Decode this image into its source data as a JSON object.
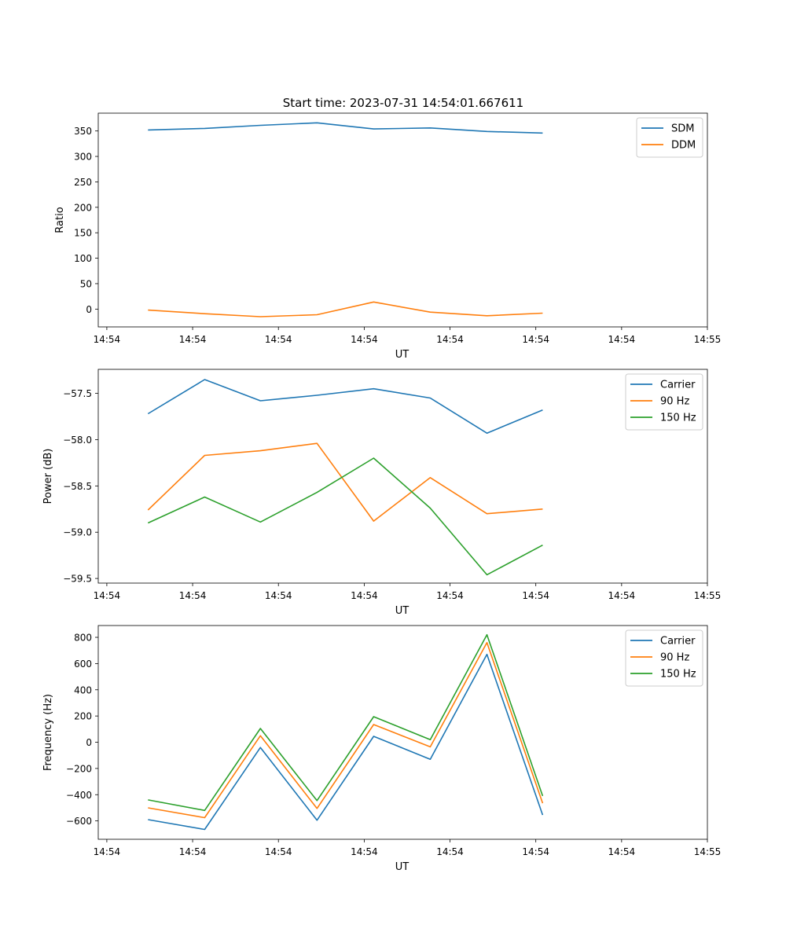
{
  "title": "Start time: 2023-07-31 14:54:01.667611",
  "chart_data": [
    {
      "type": "line",
      "xlabel": "UT",
      "ylabel": "Ratio",
      "x_ticks": [
        "14:54",
        "14:54",
        "14:54",
        "14:54",
        "14:54",
        "14:54",
        "14:54",
        "14:55"
      ],
      "x_tick_pos": [
        0,
        1,
        2,
        3,
        4,
        5,
        6,
        7
      ],
      "x_range": [
        -0.1,
        7.0
      ],
      "ylim": [
        -35,
        385
      ],
      "y_ticks": [
        0,
        50,
        100,
        150,
        200,
        250,
        300,
        350
      ],
      "x": [
        0.48,
        1.14,
        1.79,
        2.45,
        3.11,
        3.77,
        4.43,
        5.08
      ],
      "series": [
        {
          "name": "SDM",
          "color": "#1f77b4",
          "values": [
            352,
            355,
            361,
            366,
            354,
            356,
            349,
            346
          ]
        },
        {
          "name": "DDM",
          "color": "#ff7f0e",
          "values": [
            -2,
            -9,
            -15,
            -11,
            14,
            -6,
            -13,
            -8
          ]
        }
      ],
      "legend": "top-right"
    },
    {
      "type": "line",
      "xlabel": "UT",
      "ylabel": "Power (dB)",
      "x_ticks": [
        "14:54",
        "14:54",
        "14:54",
        "14:54",
        "14:54",
        "14:54",
        "14:54",
        "14:55"
      ],
      "x_tick_pos": [
        0,
        1,
        2,
        3,
        4,
        5,
        6,
        7
      ],
      "x_range": [
        -0.1,
        7.0
      ],
      "ylim": [
        -59.55,
        -57.24
      ],
      "y_ticks": [
        -59.5,
        -59.0,
        -58.5,
        -58.0,
        -57.5
      ],
      "y_tick_labels": [
        "−59.5",
        "−59.0",
        "−58.5",
        "−58.0",
        "−57.5"
      ],
      "x": [
        0.48,
        1.14,
        1.79,
        2.45,
        3.11,
        3.77,
        4.43,
        5.08
      ],
      "series": [
        {
          "name": "Carrier",
          "color": "#1f77b4",
          "values": [
            -57.72,
            -57.35,
            -57.58,
            -57.52,
            -57.45,
            -57.55,
            -57.93,
            -57.68
          ]
        },
        {
          "name": "90 Hz",
          "color": "#ff7f0e",
          "values": [
            -58.76,
            -58.17,
            -58.12,
            -58.04,
            -58.88,
            -58.41,
            -58.8,
            -58.75
          ]
        },
        {
          "name": "150 Hz",
          "color": "#2ca02c",
          "values": [
            -58.9,
            -58.62,
            -58.89,
            -58.57,
            -58.2,
            -58.74,
            -59.46,
            -59.14
          ]
        }
      ],
      "legend": "top-right"
    },
    {
      "type": "line",
      "xlabel": "UT",
      "ylabel": "Frequency (Hz)",
      "x_ticks": [
        "14:54",
        "14:54",
        "14:54",
        "14:54",
        "14:54",
        "14:54",
        "14:54",
        "14:55"
      ],
      "x_tick_pos": [
        0,
        1,
        2,
        3,
        4,
        5,
        6,
        7
      ],
      "x_range": [
        -0.1,
        7.0
      ],
      "ylim": [
        -740,
        890
      ],
      "y_ticks": [
        -600,
        -400,
        -200,
        0,
        200,
        400,
        600,
        800
      ],
      "y_tick_labels": [
        "−600",
        "−400",
        "−200",
        "0",
        "200",
        "400",
        "600",
        "800"
      ],
      "x": [
        0.48,
        1.14,
        1.79,
        2.45,
        3.11,
        3.77,
        4.43,
        5.08
      ],
      "series": [
        {
          "name": "Carrier",
          "color": "#1f77b4",
          "values": [
            -590,
            -665,
            -40,
            -595,
            45,
            -130,
            670,
            -555
          ]
        },
        {
          "name": "90 Hz",
          "color": "#ff7f0e",
          "values": [
            -500,
            -575,
            50,
            -505,
            135,
            -35,
            760,
            -465
          ]
        },
        {
          "name": "150 Hz",
          "color": "#2ca02c",
          "values": [
            -440,
            -520,
            105,
            -445,
            195,
            20,
            820,
            -410
          ]
        }
      ],
      "legend": "top-right"
    }
  ]
}
